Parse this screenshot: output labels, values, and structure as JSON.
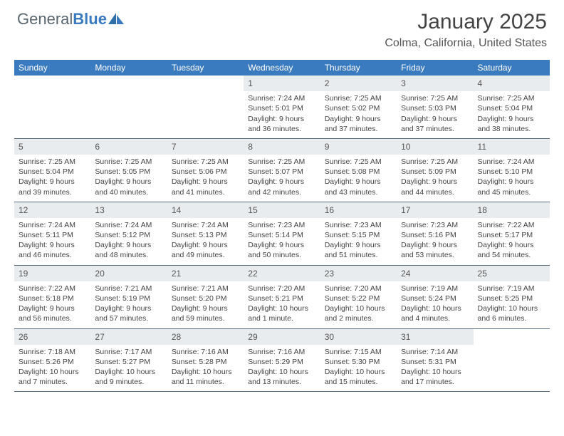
{
  "brand": {
    "part1": "General",
    "part2": "Blue"
  },
  "title": "January 2025",
  "location": "Colma, California, United States",
  "colors": {
    "header_bg": "#3a7bbf",
    "header_text": "#ffffff",
    "daynum_bg": "#e9ecef",
    "body_text": "#444444",
    "border": "#5a6b7c",
    "logo_general": "#5a6770",
    "logo_blue": "#3a7bbf",
    "background": "#ffffff"
  },
  "typography": {
    "title_fontsize": 30,
    "location_fontsize": 16,
    "weekday_fontsize": 12,
    "daynum_fontsize": 12,
    "cell_fontsize": 10.5
  },
  "weekdays": [
    "Sunday",
    "Monday",
    "Tuesday",
    "Wednesday",
    "Thursday",
    "Friday",
    "Saturday"
  ],
  "labels": {
    "sunrise": "Sunrise:",
    "sunset": "Sunset:",
    "daylight": "Daylight:"
  },
  "weeks": [
    [
      null,
      null,
      null,
      {
        "n": "1",
        "sunrise": "7:24 AM",
        "sunset": "5:01 PM",
        "daylight": "9 hours and 36 minutes."
      },
      {
        "n": "2",
        "sunrise": "7:25 AM",
        "sunset": "5:02 PM",
        "daylight": "9 hours and 37 minutes."
      },
      {
        "n": "3",
        "sunrise": "7:25 AM",
        "sunset": "5:03 PM",
        "daylight": "9 hours and 37 minutes."
      },
      {
        "n": "4",
        "sunrise": "7:25 AM",
        "sunset": "5:04 PM",
        "daylight": "9 hours and 38 minutes."
      }
    ],
    [
      {
        "n": "5",
        "sunrise": "7:25 AM",
        "sunset": "5:04 PM",
        "daylight": "9 hours and 39 minutes."
      },
      {
        "n": "6",
        "sunrise": "7:25 AM",
        "sunset": "5:05 PM",
        "daylight": "9 hours and 40 minutes."
      },
      {
        "n": "7",
        "sunrise": "7:25 AM",
        "sunset": "5:06 PM",
        "daylight": "9 hours and 41 minutes."
      },
      {
        "n": "8",
        "sunrise": "7:25 AM",
        "sunset": "5:07 PM",
        "daylight": "9 hours and 42 minutes."
      },
      {
        "n": "9",
        "sunrise": "7:25 AM",
        "sunset": "5:08 PM",
        "daylight": "9 hours and 43 minutes."
      },
      {
        "n": "10",
        "sunrise": "7:25 AM",
        "sunset": "5:09 PM",
        "daylight": "9 hours and 44 minutes."
      },
      {
        "n": "11",
        "sunrise": "7:24 AM",
        "sunset": "5:10 PM",
        "daylight": "9 hours and 45 minutes."
      }
    ],
    [
      {
        "n": "12",
        "sunrise": "7:24 AM",
        "sunset": "5:11 PM",
        "daylight": "9 hours and 46 minutes."
      },
      {
        "n": "13",
        "sunrise": "7:24 AM",
        "sunset": "5:12 PM",
        "daylight": "9 hours and 48 minutes."
      },
      {
        "n": "14",
        "sunrise": "7:24 AM",
        "sunset": "5:13 PM",
        "daylight": "9 hours and 49 minutes."
      },
      {
        "n": "15",
        "sunrise": "7:23 AM",
        "sunset": "5:14 PM",
        "daylight": "9 hours and 50 minutes."
      },
      {
        "n": "16",
        "sunrise": "7:23 AM",
        "sunset": "5:15 PM",
        "daylight": "9 hours and 51 minutes."
      },
      {
        "n": "17",
        "sunrise": "7:23 AM",
        "sunset": "5:16 PM",
        "daylight": "9 hours and 53 minutes."
      },
      {
        "n": "18",
        "sunrise": "7:22 AM",
        "sunset": "5:17 PM",
        "daylight": "9 hours and 54 minutes."
      }
    ],
    [
      {
        "n": "19",
        "sunrise": "7:22 AM",
        "sunset": "5:18 PM",
        "daylight": "9 hours and 56 minutes."
      },
      {
        "n": "20",
        "sunrise": "7:21 AM",
        "sunset": "5:19 PM",
        "daylight": "9 hours and 57 minutes."
      },
      {
        "n": "21",
        "sunrise": "7:21 AM",
        "sunset": "5:20 PM",
        "daylight": "9 hours and 59 minutes."
      },
      {
        "n": "22",
        "sunrise": "7:20 AM",
        "sunset": "5:21 PM",
        "daylight": "10 hours and 1 minute."
      },
      {
        "n": "23",
        "sunrise": "7:20 AM",
        "sunset": "5:22 PM",
        "daylight": "10 hours and 2 minutes."
      },
      {
        "n": "24",
        "sunrise": "7:19 AM",
        "sunset": "5:24 PM",
        "daylight": "10 hours and 4 minutes."
      },
      {
        "n": "25",
        "sunrise": "7:19 AM",
        "sunset": "5:25 PM",
        "daylight": "10 hours and 6 minutes."
      }
    ],
    [
      {
        "n": "26",
        "sunrise": "7:18 AM",
        "sunset": "5:26 PM",
        "daylight": "10 hours and 7 minutes."
      },
      {
        "n": "27",
        "sunrise": "7:17 AM",
        "sunset": "5:27 PM",
        "daylight": "10 hours and 9 minutes."
      },
      {
        "n": "28",
        "sunrise": "7:16 AM",
        "sunset": "5:28 PM",
        "daylight": "10 hours and 11 minutes."
      },
      {
        "n": "29",
        "sunrise": "7:16 AM",
        "sunset": "5:29 PM",
        "daylight": "10 hours and 13 minutes."
      },
      {
        "n": "30",
        "sunrise": "7:15 AM",
        "sunset": "5:30 PM",
        "daylight": "10 hours and 15 minutes."
      },
      {
        "n": "31",
        "sunrise": "7:14 AM",
        "sunset": "5:31 PM",
        "daylight": "10 hours and 17 minutes."
      },
      null
    ]
  ]
}
